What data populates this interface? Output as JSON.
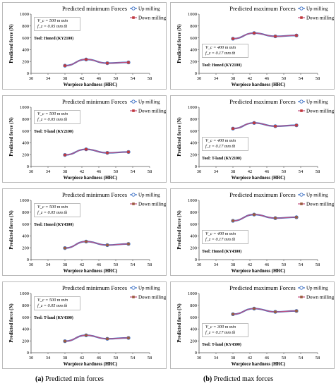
{
  "legend": {
    "up": "Up milling",
    "down": "Down milling"
  },
  "colors": {
    "up": "#3a6fc4",
    "down_min": "#c0393b",
    "down_max": "#c0393b",
    "down_ky4300": "#9a5b3d",
    "line": "#c05080"
  },
  "captions": {
    "a_label": "(a)",
    "a_text": " Predicted min forces",
    "b_label": "(b)",
    "b_text": " Predicted max forces"
  },
  "chart_data": [
    {
      "type": "line",
      "title": "Predicted minimum Forces",
      "xlabel": "Worpiece hardness (HRC)",
      "ylabel": "Predicted force (N)",
      "xlim": [
        30,
        58
      ],
      "xticks": [
        30,
        34,
        38,
        42,
        46,
        50,
        54,
        58
      ],
      "ylim": [
        0,
        1000
      ],
      "yticks": [
        0,
        200,
        400,
        600,
        800,
        1000
      ],
      "vc": "V_c = 500 m min",
      "fz": "f_z = 0.05 mm th",
      "tool": "Tool: Honed (KY2100)",
      "ann": "top-left",
      "x": [
        38,
        43,
        48,
        53
      ],
      "series": [
        {
          "name": "Up milling",
          "values": [
            130,
            235,
            172,
            185
          ]
        },
        {
          "name": "Down milling",
          "values": [
            130,
            235,
            172,
            185
          ]
        }
      ]
    },
    {
      "type": "line",
      "title": "Predicted maximum Forces",
      "xlabel": "Worpiece hardness (HRC)",
      "ylabel": "Predicted force (N)",
      "xlim": [
        30,
        58
      ],
      "xticks": [
        30,
        34,
        38,
        42,
        46,
        50,
        54,
        58
      ],
      "ylim": [
        0,
        1000
      ],
      "yticks": [
        0,
        200,
        400,
        600,
        800,
        1000
      ],
      "vc": "V_c = 400 m min",
      "fz": "f_z = 0.17 mm th",
      "tool": "Tool: Honed (KY2100)",
      "ann": "bottom-left",
      "x": [
        38,
        43,
        48,
        53
      ],
      "series": [
        {
          "name": "Up milling",
          "values": [
            585,
            680,
            625,
            640
          ]
        },
        {
          "name": "Down milling",
          "values": [
            585,
            680,
            625,
            640
          ]
        }
      ]
    },
    {
      "type": "line",
      "title": "Predicted minimum Forces",
      "xlabel": "Worpiece hardness (HRC)",
      "ylabel": "Predicted force (N)",
      "xlim": [
        30,
        58
      ],
      "xticks": [
        30,
        34,
        38,
        42,
        46,
        50,
        54,
        58
      ],
      "ylim": [
        0,
        1000
      ],
      "yticks": [
        0,
        200,
        400,
        600,
        800,
        1000
      ],
      "vc": "V_c = 500 m min",
      "fz": "f_z = 0.05 mm th",
      "tool": "Tool:  T-land (KY2100)",
      "ann": "top-left",
      "x": [
        38,
        43,
        48,
        53
      ],
      "series": [
        {
          "name": "Up milling",
          "values": [
            195,
            290,
            230,
            245
          ]
        },
        {
          "name": "Down milling",
          "values": [
            195,
            290,
            230,
            245
          ]
        }
      ]
    },
    {
      "type": "line",
      "title": "Predicted maximum Forces",
      "xlabel": "Worpiece hardness (HRC)",
      "ylabel": "Predicted force (N)",
      "xlim": [
        30,
        58
      ],
      "xticks": [
        30,
        34,
        38,
        42,
        46,
        50,
        54,
        58
      ],
      "ylim": [
        0,
        1000
      ],
      "yticks": [
        0,
        200,
        400,
        600,
        800,
        1000
      ],
      "vc": "V_c = 400 m min",
      "fz": "f_z = 0.17 mm th",
      "tool": "Tool:  T-land (KY2100)",
      "ann": "bottom-left",
      "x": [
        38,
        43,
        48,
        53
      ],
      "series": [
        {
          "name": "Up milling",
          "values": [
            640,
            735,
            680,
            695
          ]
        },
        {
          "name": "Down milling",
          "values": [
            640,
            735,
            680,
            695
          ]
        }
      ]
    },
    {
      "type": "line",
      "title": "Predicted minimum Forces",
      "xlabel": "Worpiece hardness (HRC)",
      "ylabel": "Predicted force (N)",
      "xlim": [
        30,
        58
      ],
      "xticks": [
        30,
        34,
        38,
        42,
        46,
        50,
        54,
        58
      ],
      "ylim": [
        0,
        1000
      ],
      "yticks": [
        0,
        200,
        400,
        600,
        800,
        1000
      ],
      "vc": "V_c = 500 m min",
      "fz": "f_z = 0.05 mm th",
      "tool": "Tool: Honed (KY4300)",
      "ann": "top-left",
      "x": [
        38,
        43,
        48,
        53
      ],
      "series": [
        {
          "name": "Up milling",
          "values": [
            195,
            305,
            245,
            265
          ]
        },
        {
          "name": "Down milling",
          "values": [
            195,
            305,
            245,
            265
          ]
        }
      ]
    },
    {
      "type": "line",
      "title": "Predicted maximum Forces",
      "xlabel": "Worpiece hardness (HRC)",
      "ylabel": "Predicted force (N)",
      "xlim": [
        30,
        58
      ],
      "xticks": [
        30,
        34,
        38,
        42,
        46,
        50,
        54,
        58
      ],
      "ylim": [
        0,
        1000
      ],
      "yticks": [
        0,
        200,
        400,
        600,
        800,
        1000
      ],
      "vc": "V_c = 400 m min",
      "fz": "f_z = 0.17 mm th",
      "tool": "Tool: Honed (KY4300)",
      "ann": "bottom-left",
      "x": [
        38,
        43,
        48,
        53
      ],
      "series": [
        {
          "name": "Up milling",
          "values": [
            655,
            760,
            700,
            715
          ]
        },
        {
          "name": "Down milling",
          "values": [
            655,
            760,
            700,
            715
          ]
        }
      ]
    },
    {
      "type": "line",
      "title": "Predicted minimum Forces",
      "xlabel": "Worpiece hardness (HRC)",
      "ylabel": "Predicted force (N)",
      "xlim": [
        30,
        58
      ],
      "xticks": [
        30,
        34,
        38,
        42,
        46,
        50,
        54,
        58
      ],
      "ylim": [
        0,
        1000
      ],
      "yticks": [
        0,
        200,
        400,
        600,
        800,
        1000
      ],
      "vc": "V_c = 500 m min",
      "fz": "f_z = 0.05 mm th",
      "tool": "Tool: T-land (KY4300)",
      "ann": "top-left",
      "x": [
        38,
        43,
        48,
        53
      ],
      "series": [
        {
          "name": "Up milling",
          "values": [
            195,
            295,
            235,
            250
          ]
        },
        {
          "name": "Down milling",
          "values": [
            195,
            295,
            235,
            250
          ]
        }
      ]
    },
    {
      "type": "line",
      "title": "Predicted maximum Forces",
      "xlabel": "Worpiece hardness (HRC)",
      "ylabel": "Predicted force (N)",
      "xlim": [
        30,
        58
      ],
      "xticks": [
        30,
        34,
        38,
        42,
        46,
        50,
        54,
        58
      ],
      "ylim": [
        0,
        1000
      ],
      "yticks": [
        0,
        200,
        400,
        600,
        800,
        1000
      ],
      "vc": "V_c = 300 m min",
      "fz": "f_z = 0.17 mm th",
      "tool": "Tool: T-land (KY4300)",
      "ann": "bottom-left",
      "x": [
        38,
        43,
        48,
        53
      ],
      "series": [
        {
          "name": "Up milling",
          "values": [
            650,
            745,
            690,
            705
          ]
        },
        {
          "name": "Down milling",
          "values": [
            650,
            745,
            690,
            705
          ]
        }
      ]
    }
  ]
}
